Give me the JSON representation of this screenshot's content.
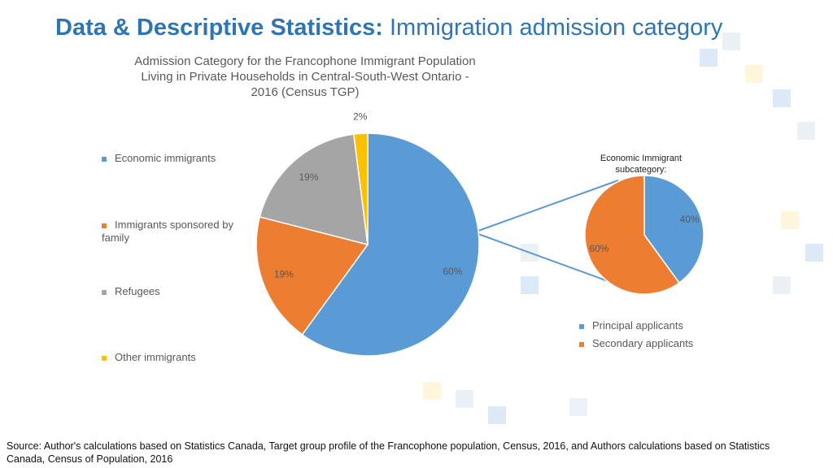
{
  "slide": {
    "title_bold": "Data & Descriptive Statistics:",
    "title_rest": "Immigration admission category",
    "source": "Source: Author's calculations based on Statistics Canada, Target group profile of the Francophone population, Census, 2016, and Authors calculations based on Statistics Canada, Census of Population, 2016"
  },
  "chart_data": [
    {
      "type": "pie",
      "title": "Admission Category for the Francophone Immigrant Population Living in Private Households in Central-South-West Ontario - 2016 (Census TGP)",
      "categories": [
        "Economic immigrants",
        "Immigrants sponsored by family",
        "Refugees",
        "Other immigrants"
      ],
      "values": [
        60,
        19,
        19,
        2
      ],
      "value_labels": [
        "60%",
        "19%",
        "19%",
        "2%"
      ],
      "colors": [
        "#5b9bd5",
        "#ed7d31",
        "#a5a5a5",
        "#ffc000"
      ]
    },
    {
      "type": "pie",
      "title": "Economic Immigrant subcategory:",
      "categories": [
        "Principal applicants",
        "Secondary applicants"
      ],
      "values": [
        40,
        60
      ],
      "value_labels": [
        "40%",
        "60%"
      ],
      "colors": [
        "#5b9bd5",
        "#ed7d31"
      ]
    }
  ]
}
